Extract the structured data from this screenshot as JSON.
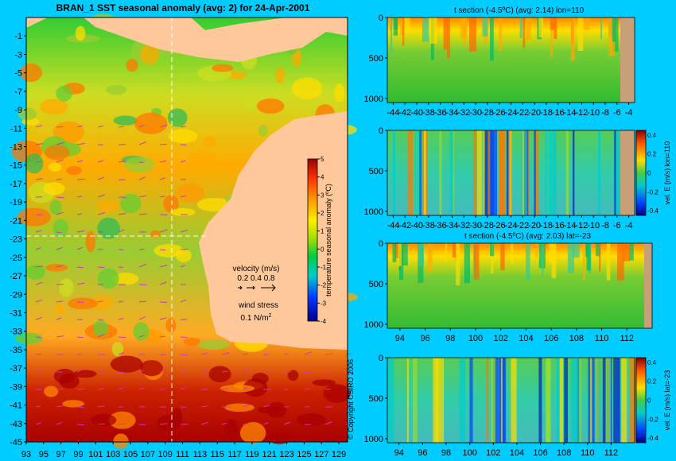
{
  "main_map": {
    "title": "BRAN_1  SST seasonal anomaly  (avg: 2)  for 24-Apr-2001",
    "x_ticks": [
      "93",
      "95",
      "97",
      "99",
      "101",
      "103",
      "105",
      "107",
      "109",
      "111",
      "113",
      "115",
      "117",
      "119",
      "121",
      "123",
      "125",
      "127",
      "129"
    ],
    "y_ticks": [
      "-1",
      "-3",
      "-5",
      "-7",
      "-9",
      "-11",
      "-13",
      "-15",
      "-17",
      "-19",
      "-21",
      "-23",
      "-25",
      "-27",
      "-29",
      "-31",
      "-33",
      "-35",
      "-37",
      "-39",
      "-41",
      "-43",
      "-45"
    ],
    "xlim": [
      93,
      130
    ],
    "ylim": [
      -45,
      1
    ],
    "section_lon": 110,
    "section_lat": -23,
    "colorbar": {
      "label": "temperature seasonal anomaly (ºC)",
      "ticks": [
        "5",
        "4",
        "3",
        "2",
        "1",
        "0",
        "-1",
        "-2",
        "-3",
        "-4"
      ],
      "range": [
        -4,
        5
      ]
    },
    "velocity_legend": {
      "title": "velocity (m/s)",
      "values": "0.2 0.4 0.8"
    },
    "wind_legend": {
      "title": "wind stress",
      "value": "0.1 N/m",
      "exp": "2"
    },
    "copyright": "© Copyright CSIRO 2006"
  },
  "panels": [
    {
      "title": "t section (-4.5ºC) (avg: 2.14) lon=110",
      "x_ticks": [
        "-44",
        "-42",
        "-40",
        "-38",
        "-36",
        "-34",
        "-32",
        "-30",
        "-28",
        "-26",
        "-24",
        "-22",
        "-20",
        "-18",
        "-16",
        "-14",
        "-12",
        "-10",
        "-8",
        "-6",
        "-4"
      ],
      "y_ticks": [
        "0",
        "500",
        "1000"
      ],
      "colorbar": null,
      "side_label": ""
    },
    {
      "title": "",
      "x_ticks": [
        "-44",
        "-42",
        "-40",
        "-38",
        "-36",
        "-34",
        "-32",
        "-30",
        "-28",
        "-26",
        "-24",
        "-22",
        "-20",
        "-18",
        "-16",
        "-14",
        "-12",
        "-10",
        "-8",
        "-6",
        "-4"
      ],
      "y_ticks": [
        "0",
        "500",
        "1000"
      ],
      "colorbar": {
        "ticks": [
          "0.4",
          "0.2",
          "0",
          "-0.2",
          "-0.4"
        ]
      },
      "side_label": "vel. E (m/s) lon=110"
    },
    {
      "title": "t section (-4.5ºC) (avg: 2.03) lat=-23",
      "x_ticks": [
        "94",
        "96",
        "98",
        "100",
        "102",
        "104",
        "106",
        "108",
        "110",
        "112"
      ],
      "y_ticks": [
        "0",
        "500",
        "1000"
      ],
      "colorbar": null,
      "side_label": ""
    },
    {
      "title": "",
      "x_ticks": [
        "94",
        "96",
        "98",
        "100",
        "102",
        "104",
        "106",
        "108",
        "110",
        "112"
      ],
      "y_ticks": [
        "0",
        "500",
        "1000"
      ],
      "colorbar": {
        "ticks": [
          "0.4",
          "0.2",
          "0",
          "-0.2",
          "-0.4"
        ]
      },
      "side_label": "vel. E (m/s) lat=-23"
    }
  ],
  "chart_data": [
    {
      "type": "heatmap",
      "title": "BRAN_1  SST seasonal anomaly  (avg: 2)  for 24-Apr-2001",
      "xlim": [
        93,
        130
      ],
      "ylim": [
        -45,
        1
      ],
      "value_range": [
        -4,
        5
      ],
      "mean": 2
    },
    {
      "type": "heatmap",
      "title": "t section (-4.5ºC) (avg: 2.14) lon=110",
      "xlim": [
        -45,
        -3
      ],
      "ylim": [
        1050,
        0
      ],
      "mean": 2.14
    },
    {
      "type": "heatmap",
      "title": "",
      "xlim": [
        -45,
        -3
      ],
      "ylim": [
        1050,
        0
      ],
      "value_range": [
        -0.4,
        0.4
      ]
    },
    {
      "type": "heatmap",
      "title": "t section (-4.5ºC) (avg: 2.03) lat=-23",
      "xlim": [
        93,
        114
      ],
      "ylim": [
        1050,
        0
      ],
      "mean": 2.03
    },
    {
      "type": "heatmap",
      "title": "",
      "xlim": [
        93,
        114
      ],
      "ylim": [
        1050,
        0
      ],
      "value_range": [
        -0.4,
        0.4
      ]
    }
  ]
}
